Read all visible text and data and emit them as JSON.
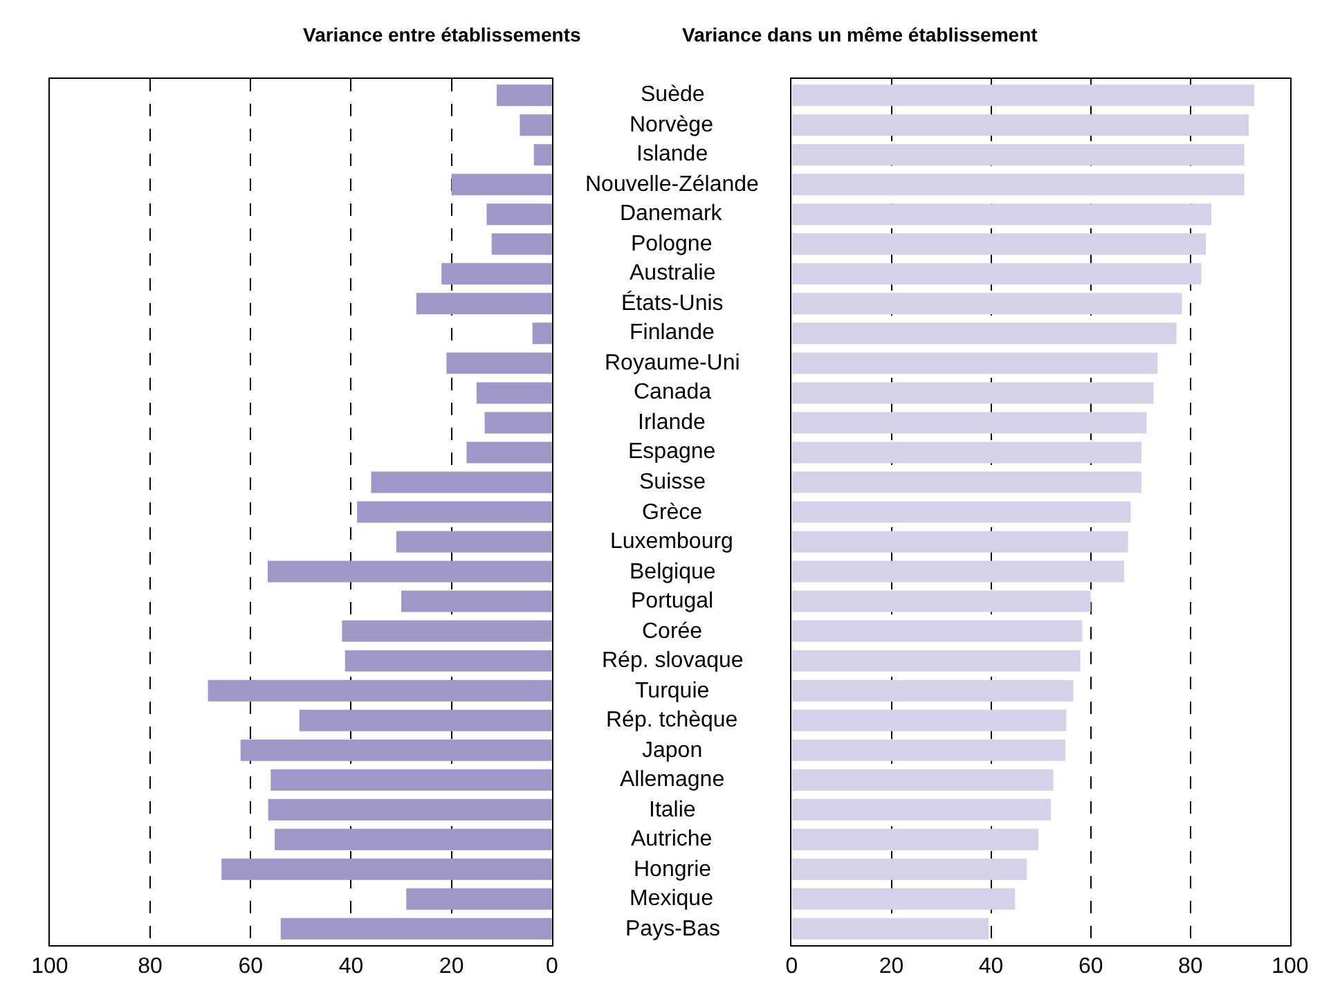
{
  "chart_data": [
    {
      "type": "bar",
      "orientation": "horizontal",
      "title": "Variance entre établissements",
      "categories": [
        "Suède",
        "Norvège",
        "Islande",
        "Nouvelle-Zélande",
        "Danemark",
        "Pologne",
        "Australie",
        "États-Unis",
        "Finlande",
        "Royaume-Uni",
        "Canada",
        "Irlande",
        "Espagne",
        "Suisse",
        "Grèce",
        "Luxembourg",
        "Belgique",
        "Portugal",
        "Corée",
        "Rép. slovaque",
        "Turquie",
        "Rép. tchèque",
        "Japon",
        "Allemagne",
        "Italie",
        "Autriche",
        "Hongrie",
        "Mexique",
        "Pays-Bas"
      ],
      "values": [
        11,
        6.4,
        3.6,
        20,
        13,
        12,
        22,
        27,
        3.9,
        21,
        15,
        13.4,
        17,
        36,
        38.8,
        31,
        56.6,
        30,
        41.8,
        41.2,
        68.5,
        50.3,
        62,
        56,
        56.5,
        55.2,
        65.8,
        29,
        54
      ],
      "color": "#9e98c8",
      "xlim": [
        100,
        0
      ],
      "xticks": [
        100,
        80,
        60,
        40,
        20,
        0
      ],
      "grid": "x",
      "line_style": "dashed"
    },
    {
      "type": "bar",
      "orientation": "horizontal",
      "title": "Variance dans un même établissement",
      "categories": [
        "Suède",
        "Norvège",
        "Islande",
        "Nouvelle-Zélande",
        "Danemark",
        "Pologne",
        "Australie",
        "États-Unis",
        "Finlande",
        "Royaume-Uni",
        "Canada",
        "Irlande",
        "Espagne",
        "Suisse",
        "Grèce",
        "Luxembourg",
        "Belgique",
        "Portugal",
        "Corée",
        "Rép. slovaque",
        "Turquie",
        "Rép. tchèque",
        "Japon",
        "Allemagne",
        "Italie",
        "Autriche",
        "Hongrie",
        "Mexique",
        "Pays-Bas"
      ],
      "values": [
        92.8,
        91.7,
        90.8,
        90.8,
        84.2,
        83.1,
        82.2,
        78.3,
        77.2,
        73.4,
        72.6,
        71.2,
        70.2,
        70.2,
        68,
        67.5,
        66.7,
        60,
        58.3,
        57.9,
        56.5,
        55.1,
        54.9,
        52.5,
        52,
        49.5,
        47.2,
        44.8,
        39.5
      ],
      "color": "#d5d1e8",
      "xlim": [
        0,
        100
      ],
      "xticks": [
        0,
        20,
        40,
        60,
        80,
        100
      ],
      "grid": "x",
      "line_style": "dashed",
      "tick_labels": "x"
    }
  ]
}
